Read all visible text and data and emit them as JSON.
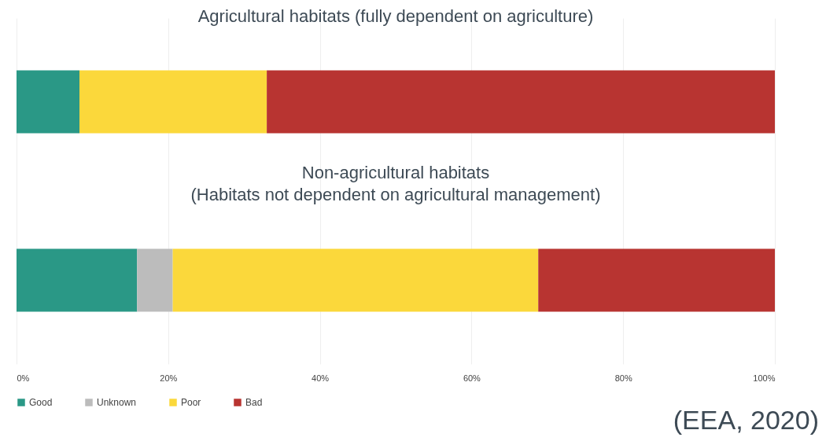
{
  "chart_data": {
    "type": "bar",
    "orientation": "horizontal",
    "stacked": true,
    "categories": [
      "Agricultural habitats (fully dependent on agriculture)",
      "Non-agricultural habitats\n(Habitats not dependent on agricultural management)"
    ],
    "series": [
      {
        "name": "Good",
        "color": "#2a9886",
        "values": [
          8.3,
          15.9
        ]
      },
      {
        "name": "Unknown",
        "color": "#bcbcbc",
        "values": [
          0,
          4.7
        ]
      },
      {
        "name": "Poor",
        "color": "#fbd83b",
        "values": [
          24.7,
          48.2
        ]
      },
      {
        "name": "Bad",
        "color": "#b83431",
        "values": [
          67,
          31.2
        ]
      }
    ],
    "xlim": [
      0,
      100
    ],
    "xticks": [
      {
        "value": 0,
        "label": "0%"
      },
      {
        "value": 20,
        "label": "20%"
      },
      {
        "value": 40,
        "label": "40%"
      },
      {
        "value": 60,
        "label": "60%"
      },
      {
        "value": 80,
        "label": "80%"
      },
      {
        "value": 100,
        "label": "100%"
      }
    ],
    "grid": "x",
    "legend": "bottom left",
    "tick_labels": "x",
    "annotations": [
      "(EEA, 2020)"
    ]
  }
}
